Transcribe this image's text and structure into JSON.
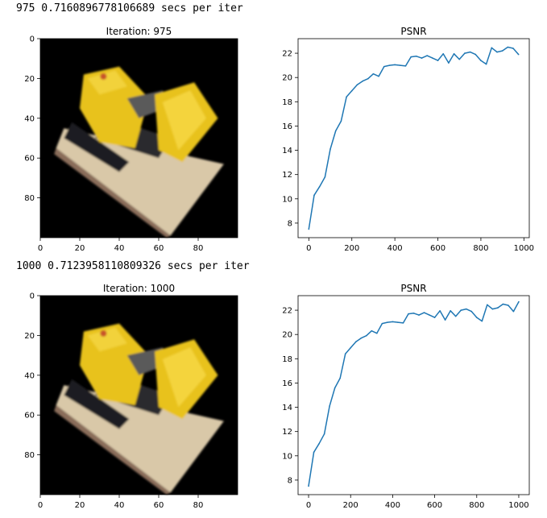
{
  "logs": [
    "975 0.7160896778106689 secs per iter",
    "1000 0.7123958110809326 secs per iter"
  ],
  "image_icon": "bulldozer-render-image",
  "chart_data": [
    {
      "type": "image",
      "title": "Iteration: 975",
      "x_ticks": [
        0,
        20,
        40,
        60,
        80
      ],
      "y_ticks": [
        0,
        20,
        40,
        60,
        80
      ],
      "xlim": [
        0,
        100
      ],
      "ylim": [
        0,
        100
      ],
      "colors": {
        "background": "#000000",
        "body": "#e8c21d",
        "base": "#d9c8a8"
      }
    },
    {
      "type": "line",
      "title": "PSNR",
      "x": [
        0,
        25,
        50,
        75,
        100,
        125,
        150,
        175,
        200,
        225,
        250,
        275,
        300,
        325,
        350,
        375,
        400,
        425,
        450,
        475,
        500,
        525,
        550,
        575,
        600,
        625,
        650,
        675,
        700,
        725,
        750,
        775,
        800,
        825,
        850,
        875,
        900,
        925,
        950,
        975
      ],
      "y": [
        7.5,
        10.3,
        11.0,
        11.8,
        14.1,
        15.6,
        16.4,
        18.4,
        18.9,
        19.4,
        19.7,
        19.9,
        20.3,
        20.1,
        20.9,
        21.0,
        21.05,
        21.0,
        20.95,
        21.7,
        21.75,
        21.6,
        21.8,
        21.6,
        21.4,
        21.95,
        21.2,
        21.95,
        21.5,
        22.0,
        22.1,
        21.9,
        21.4,
        21.1,
        22.45,
        22.1,
        22.2,
        22.5,
        22.4,
        21.9
      ],
      "x_ticks": [
        0,
        200,
        400,
        600,
        800,
        1000
      ],
      "y_ticks": [
        8,
        10,
        12,
        14,
        16,
        18,
        20,
        22
      ],
      "xlim": [
        -50,
        1025
      ],
      "ylim": [
        6.8,
        23.2
      ],
      "colors": {
        "line": "#1f77b4"
      }
    },
    {
      "type": "image",
      "title": "Iteration: 1000",
      "x_ticks": [
        0,
        20,
        40,
        60,
        80
      ],
      "y_ticks": [
        0,
        20,
        40,
        60,
        80
      ],
      "xlim": [
        0,
        100
      ],
      "ylim": [
        0,
        100
      ],
      "colors": {
        "background": "#000000",
        "body": "#e8c21d",
        "base": "#d9c8a8"
      }
    },
    {
      "type": "line",
      "title": "PSNR",
      "x": [
        0,
        25,
        50,
        75,
        100,
        125,
        150,
        175,
        200,
        225,
        250,
        275,
        300,
        325,
        350,
        375,
        400,
        425,
        450,
        475,
        500,
        525,
        550,
        575,
        600,
        625,
        650,
        675,
        700,
        725,
        750,
        775,
        800,
        825,
        850,
        875,
        900,
        925,
        950,
        975,
        1000
      ],
      "y": [
        7.5,
        10.3,
        11.0,
        11.8,
        14.1,
        15.6,
        16.4,
        18.4,
        18.9,
        19.4,
        19.7,
        19.9,
        20.3,
        20.1,
        20.9,
        21.0,
        21.05,
        21.0,
        20.95,
        21.7,
        21.75,
        21.6,
        21.8,
        21.6,
        21.4,
        21.95,
        21.2,
        21.95,
        21.5,
        22.0,
        22.1,
        21.9,
        21.4,
        21.1,
        22.45,
        22.1,
        22.2,
        22.5,
        22.4,
        21.9,
        22.7
      ],
      "x_ticks": [
        0,
        200,
        400,
        600,
        800,
        1000
      ],
      "y_ticks": [
        8,
        10,
        12,
        14,
        16,
        18,
        20,
        22
      ],
      "xlim": [
        -50,
        1050
      ],
      "ylim": [
        6.8,
        23.2
      ],
      "colors": {
        "line": "#1f77b4"
      }
    }
  ]
}
